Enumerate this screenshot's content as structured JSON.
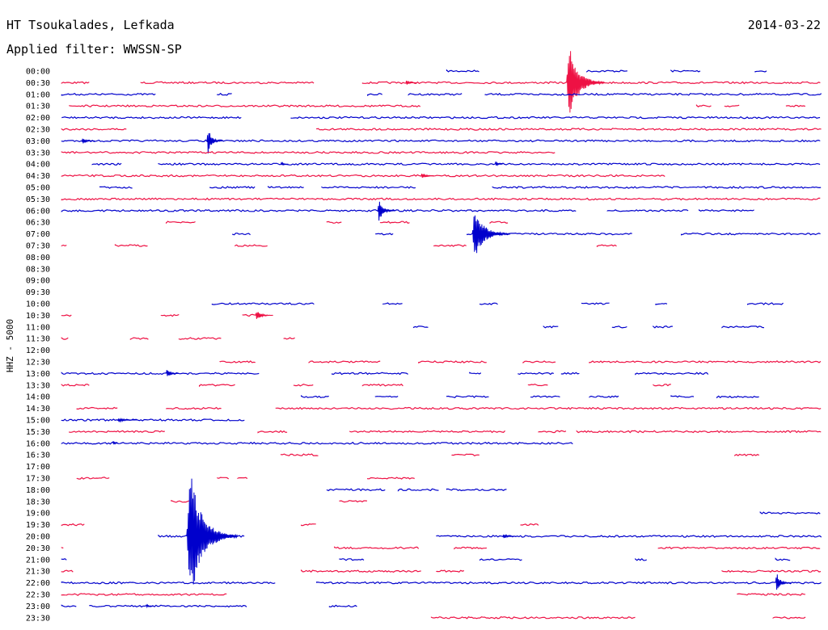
{
  "header": {
    "station": "HT Tsoukalades, Lefkada",
    "date": "2014-03-22",
    "filter": "Applied filter: WWSSN-SP"
  },
  "colors": {
    "odd": "#0000cc",
    "even": "#ee1144"
  },
  "chart_data": {
    "type": "line",
    "title": "HT Tsoukalades, Lefkada",
    "subtitle": "Applied filter: WWSSN-SP",
    "ylabel": "HHZ - 5000",
    "x_unit": "minutes",
    "x_range": [
      0,
      30
    ],
    "rows": [
      {
        "label": "00:00",
        "segs": [
          [
            15.3,
            16.6
          ],
          [
            20.8,
            22.4
          ],
          [
            24.1,
            25.3
          ],
          [
            27.4,
            27.9
          ]
        ],
        "events": []
      },
      {
        "label": "00:30",
        "segs": [
          [
            0.2,
            1.3
          ],
          [
            3.3,
            10.1
          ],
          [
            12.0,
            30.0
          ]
        ],
        "events": [
          {
            "t": 13.7,
            "a": 0.25,
            "d": 0.4
          },
          {
            "t": 20.0,
            "a": 3.5,
            "d": 1.5
          }
        ]
      },
      {
        "label": "01:00",
        "segs": [
          [
            0.2,
            3.9
          ],
          [
            6.3,
            6.9
          ],
          [
            12.2,
            12.8
          ],
          [
            13.8,
            15.9
          ],
          [
            16.8,
            30.0
          ]
        ],
        "events": []
      },
      {
        "label": "01:30",
        "segs": [
          [
            0.5,
            14.3
          ],
          [
            25.1,
            25.7
          ],
          [
            26.2,
            26.8
          ],
          [
            28.6,
            29.4
          ]
        ],
        "events": []
      },
      {
        "label": "02:00",
        "segs": [
          [
            0.2,
            7.3
          ],
          [
            9.2,
            30.0
          ]
        ],
        "events": []
      },
      {
        "label": "02:30",
        "segs": [
          [
            0.2,
            2.8
          ],
          [
            10.2,
            30.0
          ]
        ],
        "events": []
      },
      {
        "label": "03:00",
        "segs": [
          [
            0.2,
            30.0
          ]
        ],
        "events": [
          {
            "t": 1.0,
            "a": 0.25,
            "d": 0.5
          },
          {
            "t": 5.9,
            "a": 1.2,
            "d": 0.6
          }
        ]
      },
      {
        "label": "03:30",
        "segs": [
          [
            0.2,
            19.6
          ]
        ],
        "events": []
      },
      {
        "label": "04:00",
        "segs": [
          [
            1.4,
            2.6
          ],
          [
            4.0,
            30.0
          ]
        ],
        "events": [
          {
            "t": 8.8,
            "a": 0.2,
            "d": 0.3
          },
          {
            "t": 17.2,
            "a": 0.25,
            "d": 0.3
          }
        ]
      },
      {
        "label": "04:30",
        "segs": [
          [
            0.2,
            23.9
          ]
        ],
        "events": [
          {
            "t": 14.3,
            "a": 0.3,
            "d": 0.5
          }
        ]
      },
      {
        "label": "05:00",
        "segs": [
          [
            1.7,
            3.0
          ],
          [
            6.0,
            7.8
          ],
          [
            8.3,
            9.7
          ],
          [
            10.4,
            14.1
          ],
          [
            17.1,
            30.0
          ]
        ],
        "events": []
      },
      {
        "label": "05:30",
        "segs": [
          [
            0.2,
            30.0
          ]
        ],
        "events": []
      },
      {
        "label": "06:00",
        "segs": [
          [
            0.2,
            20.4
          ],
          [
            21.6,
            24.8
          ],
          [
            25.2,
            27.4
          ]
        ],
        "events": [
          {
            "t": 12.6,
            "a": 0.9,
            "d": 0.7
          }
        ]
      },
      {
        "label": "06:30",
        "segs": [
          [
            4.3,
            5.5
          ],
          [
            10.6,
            11.2
          ],
          [
            12.7,
            13.9
          ],
          [
            17.0,
            17.7
          ]
        ],
        "events": []
      },
      {
        "label": "07:00",
        "segs": [
          [
            6.9,
            7.6
          ],
          [
            12.5,
            13.2
          ],
          [
            16.1,
            22.6
          ],
          [
            24.5,
            30.0
          ]
        ],
        "events": [
          {
            "t": 16.3,
            "a": 2.2,
            "d": 1.5
          }
        ]
      },
      {
        "label": "07:30",
        "segs": [
          [
            0.2,
            0.4
          ],
          [
            2.3,
            3.6
          ],
          [
            7.0,
            8.3
          ],
          [
            14.8,
            16.1
          ],
          [
            21.2,
            22.0
          ]
        ],
        "events": []
      },
      {
        "label": "08:00",
        "segs": [],
        "events": []
      },
      {
        "label": "08:30",
        "segs": [],
        "events": []
      },
      {
        "label": "09:00",
        "segs": [],
        "events": []
      },
      {
        "label": "09:30",
        "segs": [],
        "events": []
      },
      {
        "label": "10:00",
        "segs": [
          [
            6.1,
            10.1
          ],
          [
            12.8,
            13.6
          ],
          [
            16.6,
            17.3
          ],
          [
            20.6,
            21.7
          ],
          [
            23.5,
            24.0
          ],
          [
            27.1,
            28.5
          ]
        ],
        "events": []
      },
      {
        "label": "10:30",
        "segs": [
          [
            0.2,
            0.6
          ],
          [
            4.1,
            4.8
          ],
          [
            7.3,
            8.3
          ]
        ],
        "events": [
          {
            "t": 7.8,
            "a": 0.45,
            "d": 0.7
          }
        ]
      },
      {
        "label": "11:00",
        "segs": [
          [
            14.0,
            14.6
          ],
          [
            19.1,
            19.7
          ],
          [
            21.8,
            22.4
          ],
          [
            23.4,
            24.2
          ],
          [
            26.1,
            27.8
          ]
        ],
        "events": []
      },
      {
        "label": "11:30",
        "segs": [
          [
            0.2,
            0.5
          ],
          [
            2.9,
            3.6
          ],
          [
            4.8,
            6.5
          ],
          [
            8.9,
            9.4
          ]
        ],
        "events": []
      },
      {
        "label": "12:00",
        "segs": [],
        "events": []
      },
      {
        "label": "12:30",
        "segs": [
          [
            6.4,
            7.8
          ],
          [
            9.9,
            12.7
          ],
          [
            14.2,
            16.9
          ],
          [
            18.3,
            19.6
          ],
          [
            20.9,
            30.0
          ]
        ],
        "events": []
      },
      {
        "label": "13:00",
        "segs": [
          [
            0.2,
            8.0
          ],
          [
            10.8,
            13.8
          ],
          [
            16.2,
            16.7
          ],
          [
            18.1,
            19.5
          ],
          [
            19.8,
            20.5
          ],
          [
            22.7,
            25.6
          ]
        ],
        "events": [
          {
            "t": 4.3,
            "a": 0.45,
            "d": 0.5
          }
        ]
      },
      {
        "label": "13:30",
        "segs": [
          [
            0.2,
            1.3
          ],
          [
            5.6,
            7.0
          ],
          [
            9.3,
            10.1
          ],
          [
            12.0,
            13.6
          ],
          [
            18.5,
            19.3
          ],
          [
            23.4,
            24.1
          ]
        ],
        "events": []
      },
      {
        "label": "14:00",
        "segs": [
          [
            9.6,
            10.7
          ],
          [
            12.5,
            13.4
          ],
          [
            15.3,
            17.0
          ],
          [
            18.6,
            19.8
          ],
          [
            20.9,
            22.1
          ],
          [
            24.1,
            25.0
          ],
          [
            25.9,
            27.6
          ]
        ],
        "events": []
      },
      {
        "label": "14:30",
        "segs": [
          [
            0.8,
            2.4
          ],
          [
            4.3,
            6.5
          ],
          [
            8.6,
            30.0
          ]
        ],
        "events": []
      },
      {
        "label": "15:00",
        "segs": [
          [
            0.2,
            7.4
          ]
        ],
        "events": [
          {
            "t": 2.4,
            "a": 0.2,
            "d": 0.8
          }
        ]
      },
      {
        "label": "15:30",
        "segs": [
          [
            0.5,
            4.3
          ],
          [
            7.9,
            9.1
          ],
          [
            11.5,
            17.6
          ],
          [
            18.9,
            20.0
          ],
          [
            20.4,
            30.0
          ]
        ],
        "events": []
      },
      {
        "label": "16:00",
        "segs": [
          [
            0.2,
            20.3
          ]
        ],
        "events": [
          {
            "t": 2.2,
            "a": 0.3,
            "d": 0.2
          }
        ]
      },
      {
        "label": "16:30",
        "segs": [
          [
            8.8,
            10.3
          ],
          [
            15.5,
            16.6
          ],
          [
            26.6,
            27.6
          ]
        ],
        "events": []
      },
      {
        "label": "17:00",
        "segs": [],
        "events": []
      },
      {
        "label": "17:30",
        "segs": [
          [
            0.8,
            2.1
          ],
          [
            6.3,
            6.8
          ],
          [
            7.1,
            7.5
          ],
          [
            12.2,
            14.1
          ]
        ],
        "events": []
      },
      {
        "label": "18:00",
        "segs": [
          [
            10.6,
            12.9
          ],
          [
            13.4,
            15.0
          ],
          [
            15.3,
            17.7
          ]
        ],
        "events": []
      },
      {
        "label": "18:30",
        "segs": [
          [
            4.5,
            5.2
          ],
          [
            11.1,
            12.2
          ]
        ],
        "events": []
      },
      {
        "label": "19:00",
        "segs": [
          [
            27.6,
            30.0
          ]
        ],
        "events": []
      },
      {
        "label": "19:30",
        "segs": [
          [
            0.2,
            1.1
          ],
          [
            9.6,
            10.2
          ],
          [
            18.2,
            18.9
          ]
        ],
        "events": []
      },
      {
        "label": "20:00",
        "segs": [
          [
            4.0,
            7.4
          ],
          [
            14.9,
            30.0
          ]
        ],
        "events": [
          {
            "t": 5.1,
            "a": 6.0,
            "d": 2.0
          },
          {
            "t": 17.5,
            "a": 0.2,
            "d": 0.6
          }
        ]
      },
      {
        "label": "20:30",
        "segs": [
          [
            0.2,
            0.3
          ],
          [
            10.9,
            14.2
          ],
          [
            15.6,
            16.9
          ],
          [
            23.6,
            30.0
          ]
        ],
        "events": []
      },
      {
        "label": "21:00",
        "segs": [
          [
            0.2,
            0.4
          ],
          [
            11.1,
            12.1
          ],
          [
            16.6,
            18.3
          ],
          [
            22.7,
            23.2
          ],
          [
            28.2,
            28.8
          ]
        ],
        "events": []
      },
      {
        "label": "21:30",
        "segs": [
          [
            0.2,
            0.7
          ],
          [
            9.6,
            14.3
          ],
          [
            14.9,
            16.0
          ],
          [
            26.1,
            30.0
          ]
        ],
        "events": []
      },
      {
        "label": "22:00",
        "segs": [
          [
            0.2,
            8.6
          ],
          [
            10.2,
            30.0
          ]
        ],
        "events": [
          {
            "t": 28.2,
            "a": 0.9,
            "d": 0.6
          }
        ]
      },
      {
        "label": "22:30",
        "segs": [
          [
            0.2,
            6.7
          ],
          [
            26.7,
            29.4
          ]
        ],
        "events": []
      },
      {
        "label": "23:00",
        "segs": [
          [
            0.2,
            0.8
          ],
          [
            1.3,
            7.5
          ],
          [
            10.7,
            11.8
          ]
        ],
        "events": [
          {
            "t": 3.5,
            "a": 0.2,
            "d": 0.3
          }
        ]
      },
      {
        "label": "23:30",
        "segs": [
          [
            14.7,
            22.7
          ],
          [
            28.1,
            29.4
          ]
        ],
        "events": []
      }
    ]
  }
}
